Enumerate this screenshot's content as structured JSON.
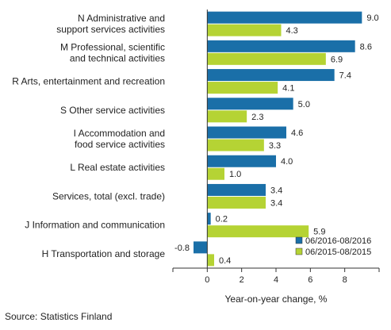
{
  "chart_data": {
    "type": "bar",
    "orientation": "horizontal",
    "categories": [
      [
        "N Administrative and",
        "support services activities"
      ],
      [
        "M Professional, scientific",
        "and technical activities"
      ],
      [
        "R Arts, entertainment and recreation"
      ],
      [
        "S Other service activities"
      ],
      [
        "I Accommodation and",
        "food service activities"
      ],
      [
        "L Real estate activities"
      ],
      [
        "Services, total (excl. trade)"
      ],
      [
        "J Information and communication"
      ],
      [
        "H Transportation and storage"
      ]
    ],
    "series": [
      {
        "name": "06/2016-08/2016",
        "color": "#1a6fa8",
        "values": [
          9.0,
          8.6,
          7.4,
          5.0,
          4.6,
          4.0,
          3.4,
          0.2,
          -0.8
        ],
        "labels": [
          "9.0",
          "8.6",
          "7.4",
          "5.0",
          "4.6",
          "4.0",
          "3.4",
          "0.2",
          "-0.8"
        ]
      },
      {
        "name": "06/2015-08/2015",
        "color": "#b5d334",
        "values": [
          4.3,
          6.9,
          4.1,
          2.3,
          3.3,
          1.0,
          3.4,
          5.9,
          0.4
        ],
        "labels": [
          "4.3",
          "6.9",
          "4.1",
          "2.3",
          "3.3",
          "1.0",
          "3.4",
          "5.9",
          "0.4"
        ]
      }
    ],
    "xlim": [
      -2,
      10
    ],
    "xticks": [
      0,
      2,
      4,
      6,
      8
    ],
    "xlabel": "Year-on-year change, %",
    "legend_position": "bottom-right",
    "grid": false
  },
  "source": "Source: Statistics Finland"
}
